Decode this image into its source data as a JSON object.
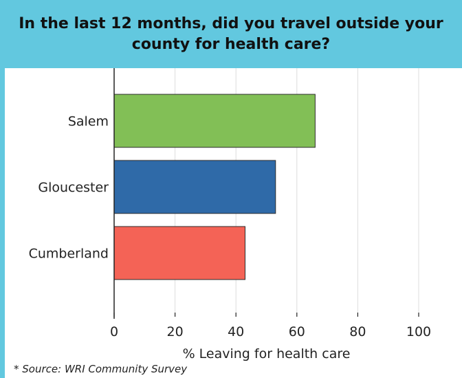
{
  "chart_data": {
    "type": "bar",
    "orientation": "horizontal",
    "title": "In the last 12 months, did you travel outside your county for health care?",
    "categories": [
      "Salem",
      "Gloucester",
      "Cumberland"
    ],
    "values": [
      66,
      53,
      43
    ],
    "colors": [
      "#82bf56",
      "#2f6aa8",
      "#f46356"
    ],
    "xlabel": "% Leaving for health care",
    "ylabel": "",
    "xlim": [
      0,
      100
    ],
    "xticks": [
      0,
      20,
      40,
      60,
      80,
      100
    ],
    "grid": true
  },
  "footer": {
    "source": "* Source: WRI Community Survey"
  }
}
